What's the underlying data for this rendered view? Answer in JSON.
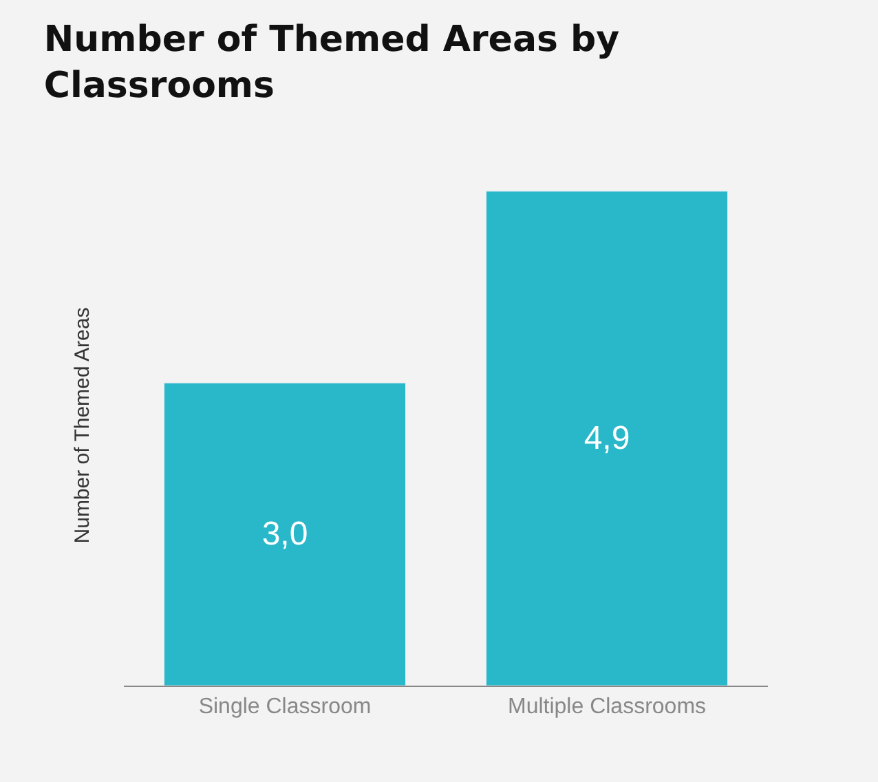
{
  "chart_data": {
    "type": "bar",
    "title": "Number of Themed Areas by\nClassrooms",
    "ylabel": "Number of Themed Areas",
    "categories": [
      "Single Classroom",
      "Multiple Classrooms"
    ],
    "values": [
      3.0,
      4.9
    ],
    "value_labels": [
      "3,0",
      "4,9"
    ],
    "color": "#29b8c9",
    "grid": false,
    "legend": false,
    "tick_labels": "x"
  }
}
